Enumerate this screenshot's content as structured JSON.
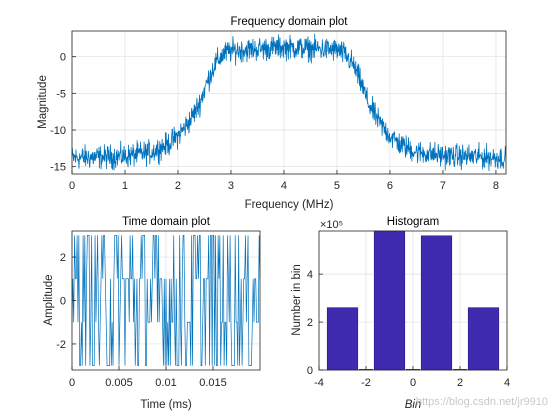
{
  "chart_data": [
    {
      "type": "line",
      "title": "Frequency domain plot",
      "xlabel": "Frequency (MHz)",
      "ylabel": "Magnitude",
      "xlim": [
        0,
        8.19
      ],
      "ylim": [
        -16,
        3.5
      ],
      "xticks": [
        "0",
        "1",
        "2",
        "3",
        "4",
        "5",
        "6",
        "7",
        "8"
      ],
      "yticks": [
        "0",
        "-5",
        "-10",
        "-15"
      ],
      "grid": true,
      "color": "#0072BD",
      "envelope": [
        {
          "x": 0.0,
          "y": -13.8
        },
        {
          "x": 1.0,
          "y": -13.6
        },
        {
          "x": 1.5,
          "y": -13.0
        },
        {
          "x": 1.8,
          "y": -12.0
        },
        {
          "x": 2.0,
          "y": -10.8
        },
        {
          "x": 2.2,
          "y": -9.0
        },
        {
          "x": 2.4,
          "y": -6.5
        },
        {
          "x": 2.55,
          "y": -3.5
        },
        {
          "x": 2.7,
          "y": -1.0
        },
        {
          "x": 2.85,
          "y": 0.3
        },
        {
          "x": 3.0,
          "y": 0.8
        },
        {
          "x": 4.0,
          "y": 1.3
        },
        {
          "x": 5.0,
          "y": 0.9
        },
        {
          "x": 5.15,
          "y": 0.3
        },
        {
          "x": 5.3,
          "y": -1.0
        },
        {
          "x": 5.45,
          "y": -3.5
        },
        {
          "x": 5.6,
          "y": -6.5
        },
        {
          "x": 5.8,
          "y": -9.0
        },
        {
          "x": 6.0,
          "y": -10.8
        },
        {
          "x": 6.2,
          "y": -12.0
        },
        {
          "x": 6.5,
          "y": -13.0
        },
        {
          "x": 7.0,
          "y": -13.5
        },
        {
          "x": 8.19,
          "y": -13.8
        }
      ]
    },
    {
      "type": "line",
      "title": "Time domain plot",
      "xlabel": "Time (ms)",
      "ylabel": "Amplitude",
      "xlim": [
        0,
        0.02
      ],
      "ylim": [
        -3.2,
        3.2
      ],
      "xticks": [
        "0",
        "0.005",
        "0.01",
        "0.015"
      ],
      "yticks": [
        "2",
        "0",
        "-2"
      ],
      "levels": [
        -3,
        -1,
        1,
        3
      ],
      "grid": true,
      "color": "#0072BD"
    },
    {
      "type": "bar",
      "title": "Histogram",
      "xlabel": "Bin",
      "ylabel": "Number in bin",
      "exponent_label": "×10⁵",
      "x": [
        -3,
        -1,
        1,
        3
      ],
      "values": [
        2.6,
        5.8,
        5.6,
        2.6
      ],
      "value_multiplier": 100000,
      "xlim": [
        -4,
        4
      ],
      "ylim": [
        0,
        5.8
      ],
      "xticks": [
        "-4",
        "-2",
        "0",
        "2",
        "4"
      ],
      "yticks": [
        "4",
        "2",
        "0"
      ],
      "grid": true,
      "color": "#3F2BB0"
    }
  ],
  "watermark": "https://blog.csdn.net/jr9910"
}
